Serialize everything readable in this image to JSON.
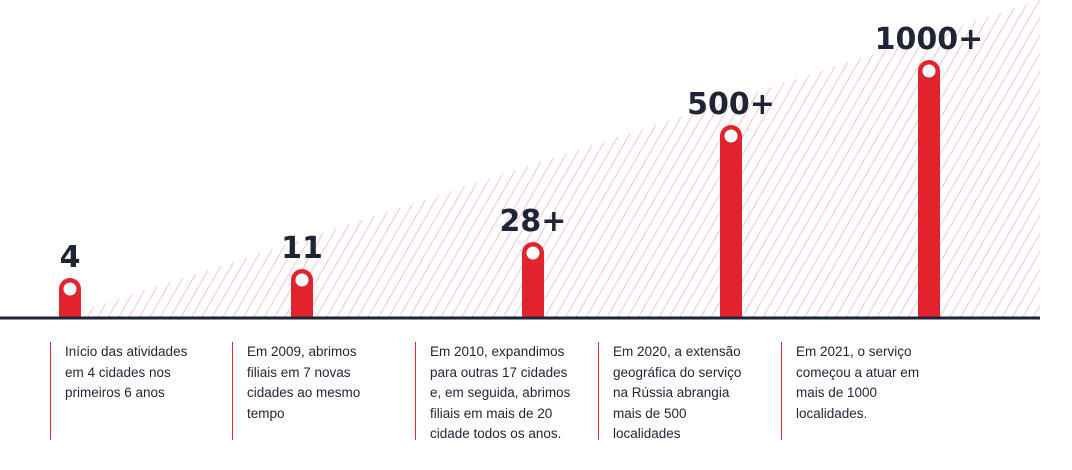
{
  "colors": {
    "accent": "#e0232c",
    "text": "#1f2537",
    "baseline": "#1f2537",
    "hatch": "#f2a7ad"
  },
  "chart_data": {
    "type": "bar",
    "categories": [
      "4",
      "11",
      "28+",
      "500+",
      "1000+"
    ],
    "value_labels": [
      "4",
      "11",
      "28+",
      "500+",
      "1000+"
    ],
    "descriptions": [
      "Início das atividades\nem 4 cidades nos\nprimeiros 6 anos",
      "Em 2009, abrimos\nfiliais em 7 novas\ncidades ao mesmo\ntempo",
      "Em 2010, expandimos\npara outras 17 cidades\ne, em seguida, abrimos\nfiliais em mais de 20\ncidade todos os anos.",
      "Em 2020, a extensão\ngeográfica do serviço\nna Rússia abrangia\nmais de 500\nlocalidades",
      "Em 2021, o serviço\ncomeçou a atuar em\nmais de 1000\nlocalidades."
    ],
    "title": "",
    "xlabel": "",
    "ylabel": ""
  }
}
